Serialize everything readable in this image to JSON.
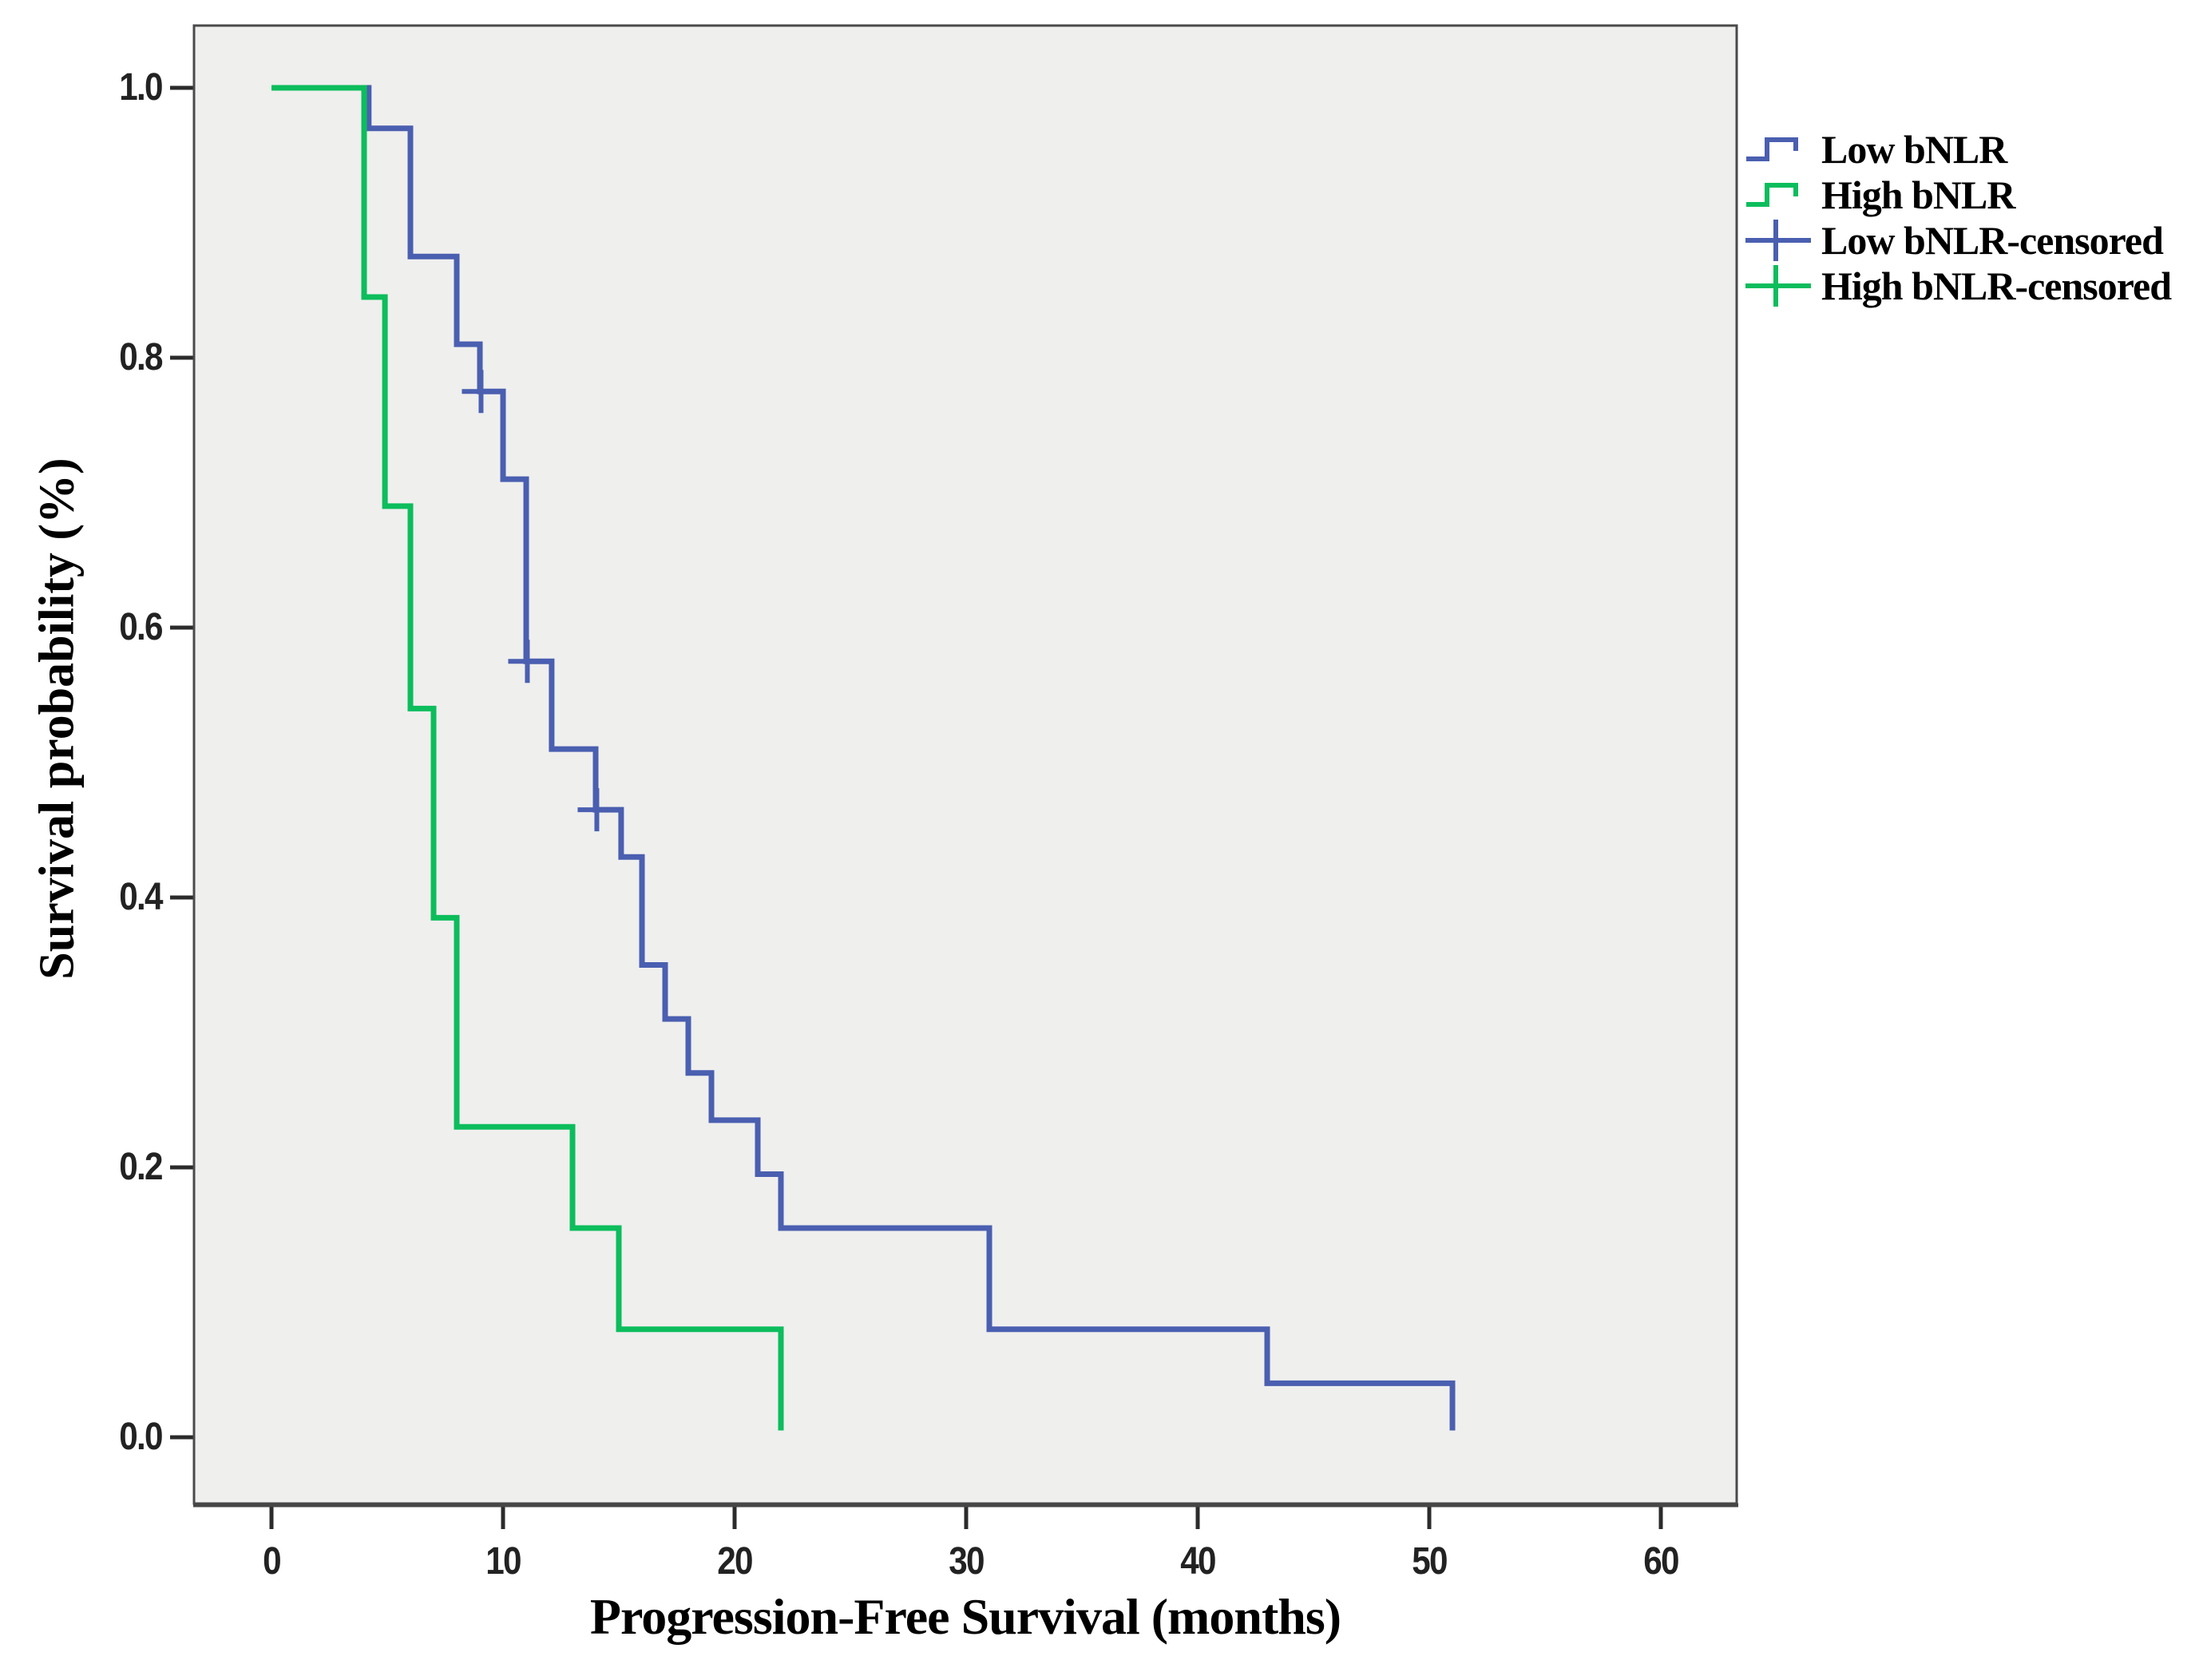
{
  "chart_data": {
    "type": "line",
    "subtype": "kaplan-meier-step-survival",
    "xlabel": "Progression-Free Survival (months)",
    "ylabel": "Survival probability (%)",
    "xlim": [
      -3.3,
      63.3
    ],
    "ylim": [
      -0.05,
      1.05
    ],
    "grid": false,
    "legend_position": "outside-top-right",
    "plot_background": "#efefee",
    "frame_color": "#4a4a4a",
    "tick_color": "#2b2b2b",
    "x_tick_values": [
      0,
      10,
      20,
      30,
      40,
      50,
      60
    ],
    "x_tick_labels": [
      "0",
      "10",
      "20",
      "30",
      "40",
      "50",
      "60"
    ],
    "y_tick_values": [
      1.0,
      0.8,
      0.6,
      0.4,
      0.2,
      0.0
    ],
    "y_tick_labels": [
      "1.0",
      "0.8",
      "0.6",
      "0.4",
      "0.2",
      "0.0"
    ],
    "series": [
      {
        "name": "Low bNLR",
        "color": "#4a5fb0",
        "steps": [
          [
            0,
            1.0
          ],
          [
            4.2,
            0.97
          ],
          [
            6,
            0.875
          ],
          [
            8,
            0.81
          ],
          [
            9,
            0.775
          ],
          [
            10,
            0.71
          ],
          [
            11,
            0.575
          ],
          [
            12.1,
            0.51
          ],
          [
            14,
            0.465
          ],
          [
            15.1,
            0.43
          ],
          [
            16,
            0.35
          ],
          [
            17,
            0.31
          ],
          [
            18,
            0.27
          ],
          [
            19,
            0.235
          ],
          [
            21,
            0.195
          ],
          [
            22,
            0.155
          ],
          [
            31,
            0.08
          ],
          [
            43,
            0.04
          ],
          [
            51,
            0.005
          ]
        ],
        "end_time": 51,
        "censors": [
          [
            9.05,
            0.775
          ],
          [
            11.05,
            0.575
          ],
          [
            14.05,
            0.465
          ]
        ]
      },
      {
        "name": "High bNLR",
        "color": "#0cbd5c",
        "steps": [
          [
            0,
            1.0
          ],
          [
            4,
            0.845
          ],
          [
            4.9,
            0.69
          ],
          [
            6,
            0.54
          ],
          [
            7,
            0.385
          ],
          [
            8,
            0.23
          ],
          [
            13,
            0.155
          ],
          [
            15,
            0.08
          ],
          [
            22,
            0.005
          ]
        ],
        "end_time": 22,
        "censors": []
      }
    ],
    "legend": [
      {
        "label": "Low bNLR",
        "color": "#4a5fb0",
        "glyph": "step"
      },
      {
        "label": "High bNLR",
        "color": "#0cbd5c",
        "glyph": "step"
      },
      {
        "label": "Low bNLR-censored",
        "color": "#4a5fb0",
        "glyph": "plus"
      },
      {
        "label": "High bNLR-censored",
        "color": "#0cbd5c",
        "glyph": "plus"
      }
    ]
  }
}
